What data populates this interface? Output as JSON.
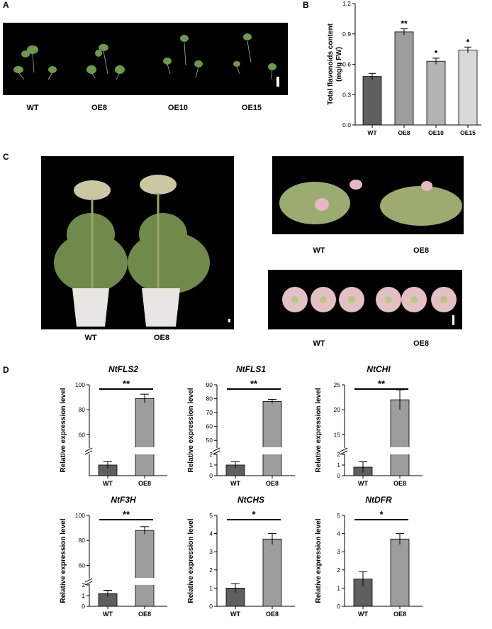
{
  "panels": {
    "a": {
      "label": "A",
      "groups": [
        "WT",
        "OE8",
        "OE10",
        "OE15"
      ]
    },
    "b": {
      "label": "B"
    },
    "c": {
      "label": "C",
      "left_captions": [
        "WT",
        "OE8"
      ],
      "right_top_captions": [
        "WT",
        "OE8"
      ],
      "right_bottom_captions": [
        "WT",
        "OE8"
      ]
    },
    "d": {
      "label": "D"
    }
  },
  "colors": {
    "wt_bar": "#5f5f5f",
    "oe_bar": "#9d9d9d",
    "oe10_bar": "#b3b3b3",
    "oe15_bar": "#d9d9d9",
    "photo_bg": "#000000"
  },
  "chart_data": [
    {
      "id": "B",
      "type": "bar",
      "categories": [
        "WT",
        "OE8",
        "OE10",
        "OE15"
      ],
      "values": [
        0.48,
        0.92,
        0.63,
        0.74
      ],
      "errors": [
        0.03,
        0.03,
        0.03,
        0.03
      ],
      "significance": [
        "",
        "**",
        "*",
        "*"
      ],
      "ylabel": "Total flavonoids content (mg/g FW)",
      "ylim": [
        0,
        1.2
      ],
      "yticks": [
        "0.0",
        "0.3",
        "0.6",
        "0.9",
        "1.2"
      ]
    },
    {
      "id": "NtFLS2",
      "type": "bar",
      "title": "NtFLS2",
      "categories": [
        "WT",
        "OE8"
      ],
      "values": [
        1.0,
        89
      ],
      "errors": [
        0.3,
        3.5
      ],
      "significance": "**",
      "ylabel": "Relative expression level",
      "axis_break": true,
      "yticks": [
        "60",
        "80",
        "100"
      ]
    },
    {
      "id": "NtFLS1",
      "type": "bar",
      "title": "NtFLS1",
      "categories": [
        "WT",
        "OE8"
      ],
      "values": [
        1.0,
        78
      ],
      "errors": [
        0.3,
        1.5
      ],
      "significance": "**",
      "ylabel": "Relative expression level",
      "axis_break": true,
      "yticks": [
        "0",
        "1",
        "2",
        "50",
        "60",
        "70",
        "80",
        "90"
      ]
    },
    {
      "id": "NtCHI",
      "type": "bar",
      "title": "NtCHI",
      "categories": [
        "WT",
        "OE8"
      ],
      "values": [
        0.8,
        22
      ],
      "errors": [
        0.5,
        2
      ],
      "significance": "**",
      "ylabel": "Relative expression level",
      "axis_break": true,
      "yticks": [
        "0",
        "1",
        "2",
        "15",
        "20",
        "25"
      ]
    },
    {
      "id": "NtF3H",
      "type": "bar",
      "title": "NtF3H",
      "categories": [
        "WT",
        "OE8"
      ],
      "values": [
        1.2,
        88
      ],
      "errors": [
        0.3,
        3
      ],
      "significance": "**",
      "ylabel": "Relative expression level",
      "axis_break": true,
      "yticks": [
        "0",
        "1",
        "2",
        "60",
        "80",
        "100"
      ]
    },
    {
      "id": "NtCHS",
      "type": "bar",
      "title": "NtCHS",
      "categories": [
        "WT",
        "OE8"
      ],
      "values": [
        1.0,
        3.7
      ],
      "errors": [
        0.25,
        0.3
      ],
      "significance": "*",
      "ylabel": "Relative expression level",
      "ylim": [
        0,
        5
      ],
      "yticks": [
        "0",
        "1",
        "2",
        "3",
        "4",
        "5"
      ]
    },
    {
      "id": "NtDFR",
      "type": "bar",
      "title": "NtDFR",
      "categories": [
        "WT",
        "OE8"
      ],
      "values": [
        1.5,
        3.7
      ],
      "errors": [
        0.4,
        0.3
      ],
      "significance": "*",
      "ylabel": "Relative expression level",
      "ylim": [
        0,
        5
      ],
      "yticks": [
        "0",
        "1",
        "2",
        "3",
        "4",
        "5"
      ]
    }
  ]
}
